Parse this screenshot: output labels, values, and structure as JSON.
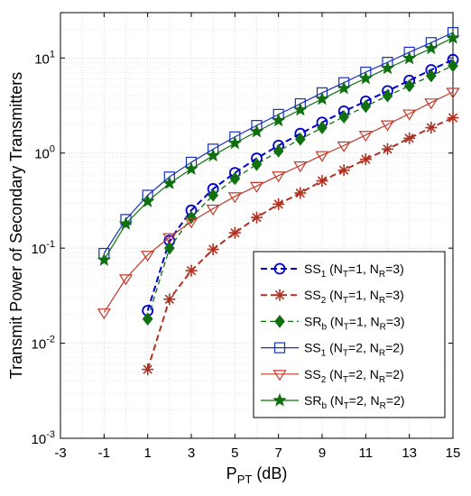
{
  "chart_data": {
    "type": "line",
    "xlabel": "P",
    "xlabel_sub": "PT",
    "xlabel_unit": " (dB)",
    "ylabel": "Transmit Power of Secondary Transmitters",
    "xlim": [
      -3,
      15
    ],
    "ylim": [
      0.001,
      30
    ],
    "yscale": "log",
    "grid": true,
    "legend_position": "bottom-right",
    "xticks": [
      -3,
      -1,
      1,
      3,
      5,
      7,
      9,
      11,
      13,
      15
    ],
    "yticks": [
      {
        "value": 0.001,
        "base": "10",
        "exp": "-3"
      },
      {
        "value": 0.01,
        "base": "10",
        "exp": "-2"
      },
      {
        "value": 0.1,
        "base": "10",
        "exp": "-1"
      },
      {
        "value": 1,
        "base": "10",
        "exp": "0"
      },
      {
        "value": 10,
        "base": "10",
        "exp": "1"
      }
    ],
    "series": [
      {
        "name": "SS1 (NT=1, NR=3)",
        "label_parts": [
          [
            "SS",
            ""
          ],
          [
            "1",
            "sub"
          ],
          [
            " (N",
            ""
          ],
          [
            "T",
            "sub"
          ],
          [
            "=1, N",
            ""
          ],
          [
            "R",
            "sub"
          ],
          [
            "=3)",
            ""
          ]
        ],
        "color": "#0000cc",
        "dash": "7,4",
        "marker": "circle",
        "width": 2,
        "x": [
          1,
          2,
          3,
          4,
          5,
          6,
          7,
          8,
          9,
          10,
          11,
          12,
          13,
          14,
          15
        ],
        "y": [
          0.022,
          0.12,
          0.25,
          0.42,
          0.62,
          0.88,
          1.2,
          1.6,
          2.1,
          2.75,
          3.5,
          4.5,
          5.8,
          7.5,
          9.6
        ]
      },
      {
        "name": "SS2 (NT=1, NR=3)",
        "label_parts": [
          [
            "SS",
            ""
          ],
          [
            "2",
            "sub"
          ],
          [
            " (N",
            ""
          ],
          [
            "T",
            "sub"
          ],
          [
            "=1, N",
            ""
          ],
          [
            "R",
            "sub"
          ],
          [
            "=3)",
            ""
          ]
        ],
        "color": "#b03020",
        "dash": "7,4",
        "marker": "asterisk",
        "width": 2,
        "x": [
          1,
          2,
          3,
          4,
          5,
          6,
          7,
          8,
          9,
          10,
          11,
          12,
          13,
          14,
          15
        ],
        "y": [
          0.0053,
          0.029,
          0.058,
          0.097,
          0.145,
          0.21,
          0.29,
          0.38,
          0.51,
          0.66,
          0.86,
          1.1,
          1.43,
          1.85,
          2.35
        ]
      },
      {
        "name": "SRb (NT=1, NR=3)",
        "label_parts": [
          [
            "SR",
            ""
          ],
          [
            "b",
            "sub"
          ],
          [
            " (N",
            ""
          ],
          [
            "T",
            "sub"
          ],
          [
            "=1, N",
            ""
          ],
          [
            "R",
            "sub"
          ],
          [
            "=3)",
            ""
          ]
        ],
        "color": "#107010",
        "dash": "6,4",
        "marker": "diamond",
        "width": 1.3,
        "x": [
          1,
          2,
          3,
          4,
          5,
          6,
          7,
          8,
          9,
          10,
          11,
          12,
          13,
          14,
          15
        ],
        "y": [
          0.018,
          0.1,
          0.21,
          0.36,
          0.54,
          0.76,
          1.05,
          1.4,
          1.85,
          2.4,
          3.1,
          4.0,
          5.1,
          6.5,
          8.3
        ]
      },
      {
        "name": "SS1 (NT=2, NR=2)",
        "label_parts": [
          [
            "SS",
            ""
          ],
          [
            "1",
            "sub"
          ],
          [
            " (N",
            ""
          ],
          [
            "T",
            "sub"
          ],
          [
            "=2, N",
            ""
          ],
          [
            "R",
            "sub"
          ],
          [
            "=2)",
            ""
          ]
        ],
        "color": "#1530c0",
        "dash": "",
        "marker": "square",
        "width": 1.2,
        "x": [
          -1,
          0,
          1,
          2,
          3,
          4,
          5,
          6,
          7,
          8,
          9,
          10,
          11,
          12,
          13,
          14,
          15
        ],
        "y": [
          0.088,
          0.2,
          0.36,
          0.56,
          0.8,
          1.1,
          1.48,
          1.95,
          2.55,
          3.3,
          4.3,
          5.5,
          7.1,
          9.0,
          11.5,
          14.5,
          18.5
        ]
      },
      {
        "name": "SS2 (NT=2, NR=2)",
        "label_parts": [
          [
            "SS",
            ""
          ],
          [
            "2",
            "sub"
          ],
          [
            " (N",
            ""
          ],
          [
            "T",
            "sub"
          ],
          [
            "=2, N",
            ""
          ],
          [
            "R",
            "sub"
          ],
          [
            "=2)",
            ""
          ]
        ],
        "color": "#c0392b",
        "dash": "",
        "marker": "triangle-down",
        "width": 1.2,
        "x": [
          -1,
          0,
          1,
          2,
          3,
          4,
          5,
          6,
          7,
          8,
          9,
          10,
          11,
          12,
          13,
          14,
          15
        ],
        "y": [
          0.021,
          0.048,
          0.085,
          0.13,
          0.19,
          0.26,
          0.35,
          0.45,
          0.58,
          0.74,
          0.95,
          1.2,
          1.55,
          2.0,
          2.6,
          3.4,
          4.4
        ]
      },
      {
        "name": "SRb (NT=2, NR=2)",
        "label_parts": [
          [
            "SR",
            ""
          ],
          [
            "b",
            "sub"
          ],
          [
            " (N",
            ""
          ],
          [
            "T",
            "sub"
          ],
          [
            "=2, N",
            ""
          ],
          [
            "R",
            "sub"
          ],
          [
            "=2)",
            ""
          ]
        ],
        "color": "#107010",
        "dash": "",
        "marker": "star",
        "width": 1.2,
        "x": [
          -1,
          0,
          1,
          2,
          3,
          4,
          5,
          6,
          7,
          8,
          9,
          10,
          11,
          12,
          13,
          14,
          15
        ],
        "y": [
          0.075,
          0.18,
          0.31,
          0.48,
          0.68,
          0.94,
          1.27,
          1.68,
          2.2,
          2.85,
          3.7,
          4.8,
          6.1,
          7.8,
          9.9,
          12.6,
          16.3
        ]
      }
    ]
  }
}
